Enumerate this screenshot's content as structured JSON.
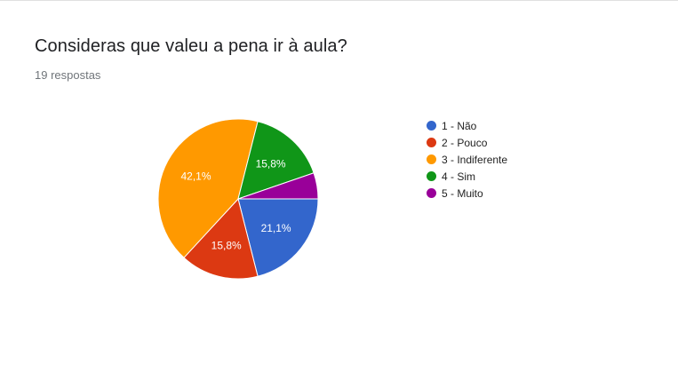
{
  "question": {
    "title": "Consideras que valeu a pena ir à aula?",
    "responses": "19 respostas"
  },
  "chart_data": {
    "type": "pie",
    "title": "Consideras que valeu a pena ir à aula?",
    "total_responses": 19,
    "slices": [
      {
        "name": "1 - Não",
        "count": 4,
        "percent_label": "21,1%",
        "color": "#3366cc"
      },
      {
        "name": "2 - Pouco",
        "count": 3,
        "percent_label": "15,8%",
        "color": "#dc3912"
      },
      {
        "name": "3 - Indiferente",
        "count": 8,
        "percent_label": "42,1%",
        "color": "#ff9900"
      },
      {
        "name": "4 - Sim",
        "count": 3,
        "percent_label": "15,8%",
        "color": "#109618"
      },
      {
        "name": "5 - Muito",
        "count": 1,
        "percent_label": "",
        "color": "#990099"
      }
    ],
    "legend_position": "right"
  },
  "colors": {
    "slice_border": "#ffffff"
  }
}
